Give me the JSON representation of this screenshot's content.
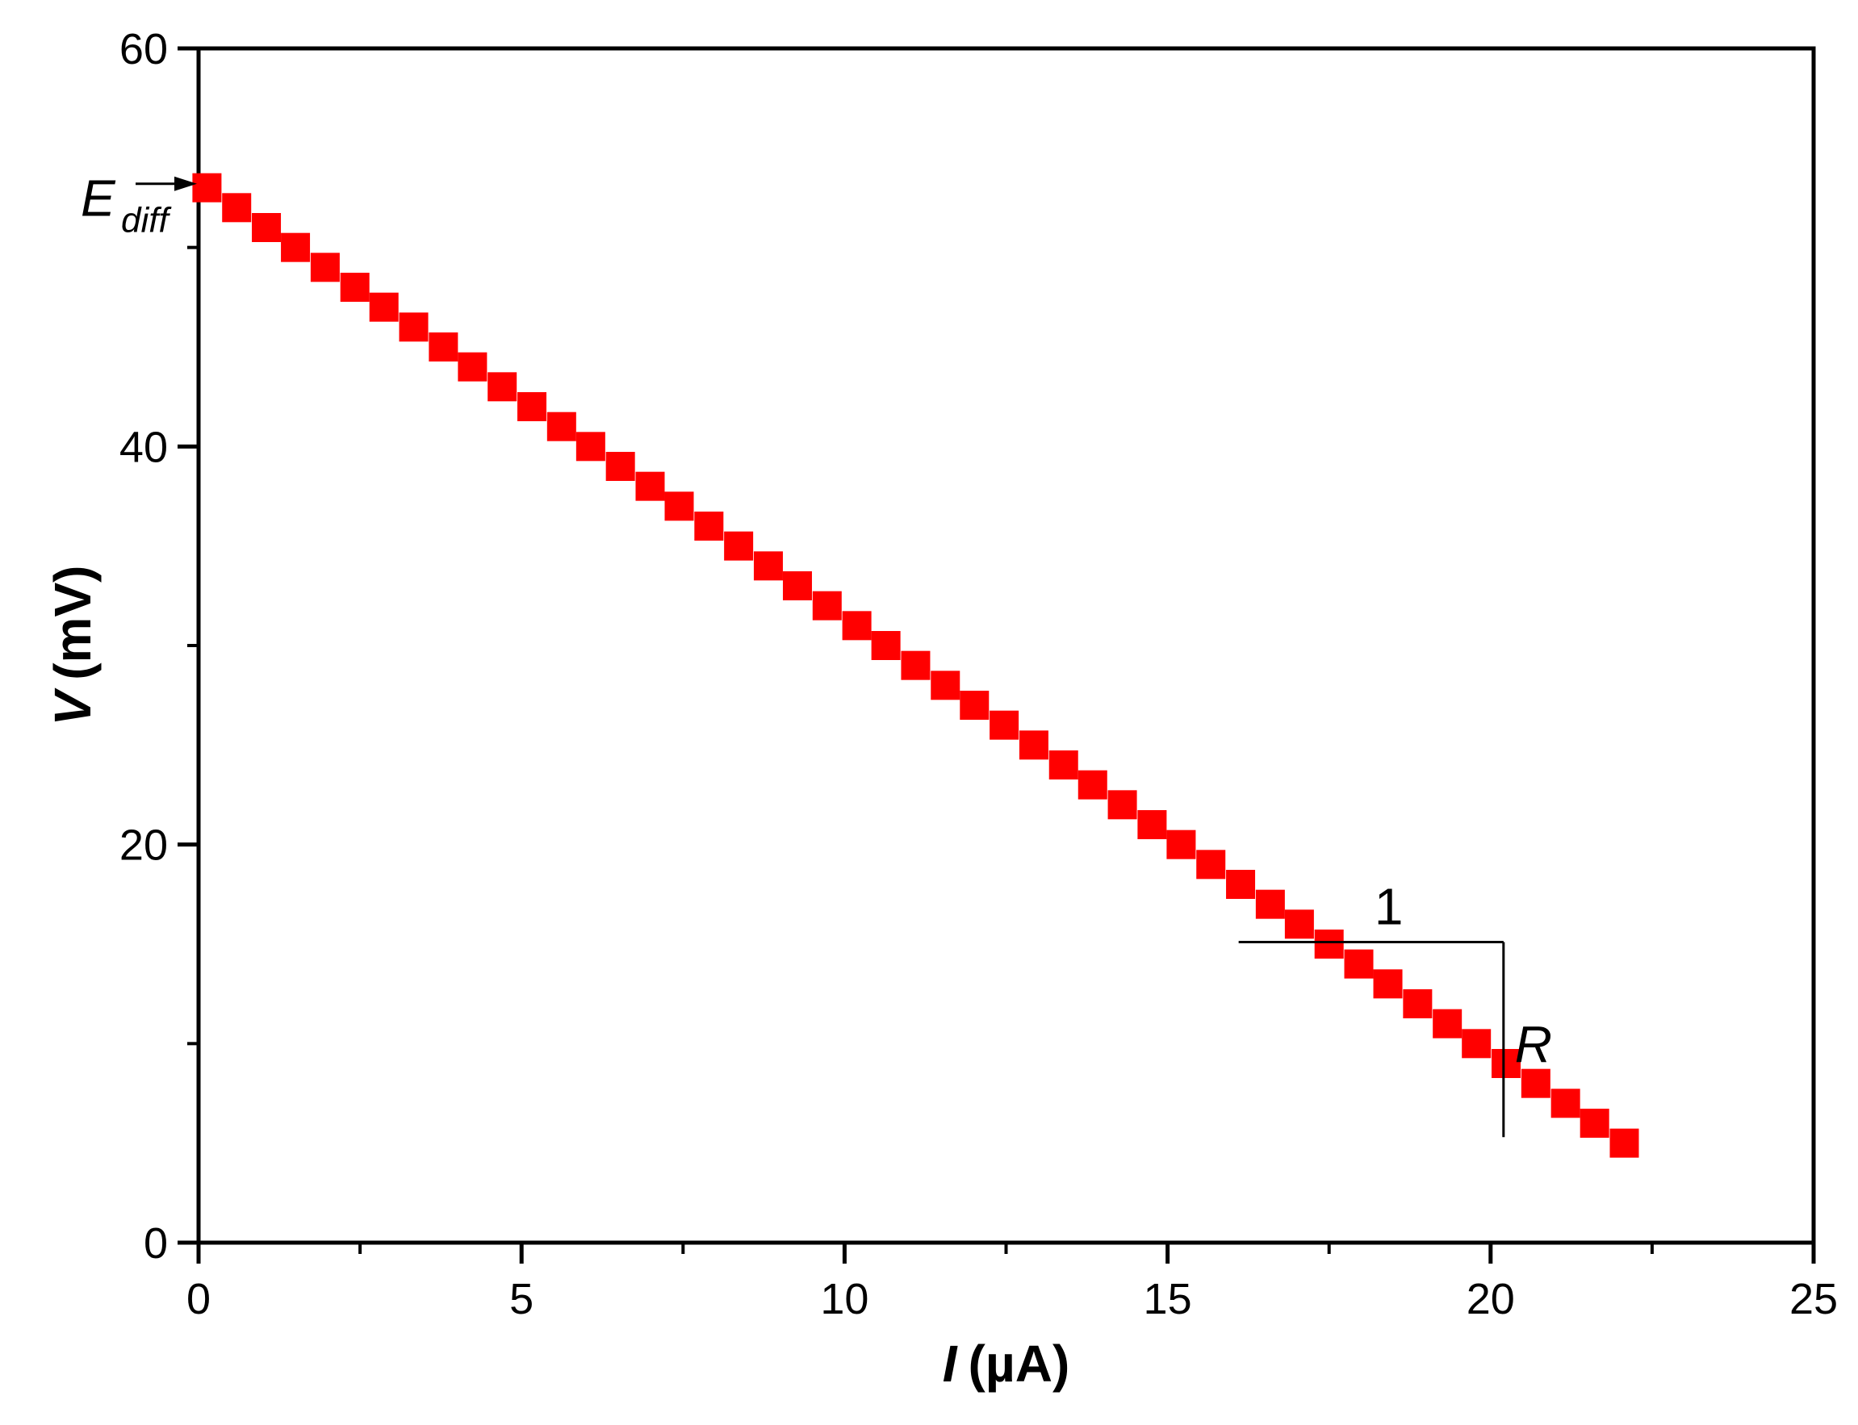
{
  "chart_data": {
    "type": "scatter",
    "xlabel_var": "I",
    "xlabel_unit": "(µA)",
    "ylabel_var": "V",
    "ylabel_unit": "(mV)",
    "xlim": [
      0,
      25
    ],
    "ylim": [
      0,
      60
    ],
    "x_ticks": [
      "0",
      "5",
      "10",
      "15",
      "20",
      "25"
    ],
    "y_ticks": [
      "0",
      "20",
      "40",
      "60"
    ],
    "grid": false,
    "marker_color": "#ff0000",
    "series": [
      {
        "marker": "square",
        "x": [
          0.13,
          0.59,
          1.05,
          1.5,
          1.96,
          2.42,
          2.87,
          3.33,
          3.79,
          4.24,
          4.7,
          5.16,
          5.62,
          6.07,
          6.53,
          6.99,
          7.44,
          7.9,
          8.36,
          8.82,
          9.27,
          9.73,
          10.19,
          10.64,
          11.1,
          11.56,
          12.01,
          12.47,
          12.93,
          13.39,
          13.84,
          14.3,
          14.76,
          15.21,
          15.67,
          16.13,
          16.59,
          17.04,
          17.5,
          17.96,
          18.41,
          18.87,
          19.33,
          19.78,
          20.24,
          20.7,
          21.16,
          21.61,
          22.07
        ],
        "y": [
          53,
          52,
          51,
          50,
          49,
          48,
          47,
          46,
          45,
          44,
          43,
          42,
          41,
          40,
          39,
          38,
          37,
          36,
          35,
          34,
          33,
          32,
          31,
          30,
          29,
          28,
          27,
          26,
          25,
          24,
          23,
          22,
          21,
          20,
          19,
          18,
          17,
          16,
          15,
          14,
          13,
          12,
          11,
          10,
          9,
          8,
          7,
          6,
          5
        ]
      }
    ],
    "annotations": {
      "intercept_label_main": "E",
      "intercept_label_sub": "diff",
      "intercept_value": 53.2,
      "slope_run_label": "1",
      "slope_rise_label": "R",
      "slope_triangle": {
        "x_start": 16.1,
        "x_end": 20.2,
        "y_top": 15.1,
        "y_bottom": 5.3
      }
    }
  }
}
